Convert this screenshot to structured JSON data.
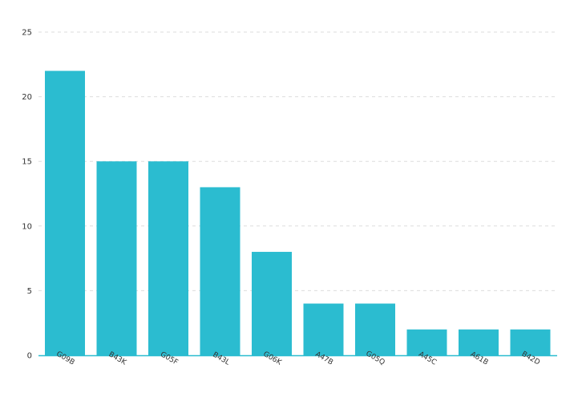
{
  "chart_data": {
    "type": "bar",
    "categories": [
      "G09B",
      "B43K",
      "G05F",
      "B43L",
      "G06K",
      "A47B",
      "G05Q",
      "A45C",
      "A61B",
      "B42D"
    ],
    "values": [
      22,
      15,
      15,
      13,
      8,
      4,
      4,
      2,
      2,
      2
    ],
    "ylim": [
      0,
      25
    ],
    "yticks": [
      0,
      5,
      10,
      15,
      20,
      25
    ],
    "title": "",
    "xlabel": "",
    "ylabel": "",
    "grid": true,
    "legend": "none",
    "colors": {
      "bar": "#2bbcd0",
      "axis": "#2bbcd0",
      "grid": "#dddddd",
      "text": "#333333"
    }
  }
}
